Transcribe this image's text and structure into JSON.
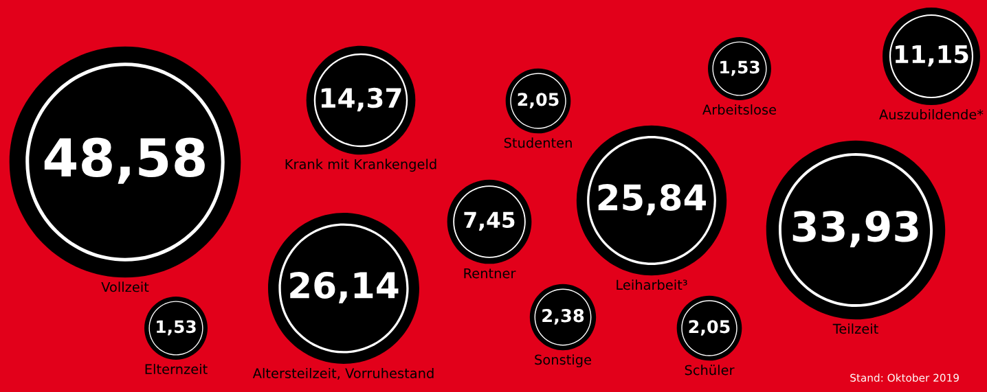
{
  "chart_data": {
    "type": "other",
    "categories": [
      "Vollzeit",
      "Krank mit Krankengeld",
      "Studenten",
      "Arbeitslose",
      "Auszubildende*",
      "Leiharbeit³",
      "Teilzeit",
      "Rentner",
      "Altersteilzeit, Vorruhestand",
      "Elternzeit",
      "Sonstige",
      "Schüler"
    ],
    "values": [
      48.58,
      14.37,
      2.05,
      1.53,
      11.15,
      25.84,
      33.93,
      7.45,
      26.14,
      1.53,
      2.38,
      2.05
    ],
    "value_labels": [
      "48,58",
      "14,37",
      "2,05",
      "1,53",
      "11,15",
      "25,84",
      "33,93",
      "7,45",
      "26,14",
      "1,53",
      "2,38",
      "2,05"
    ],
    "annotations": [
      "Stand: Oktober 2019"
    ]
  }
}
